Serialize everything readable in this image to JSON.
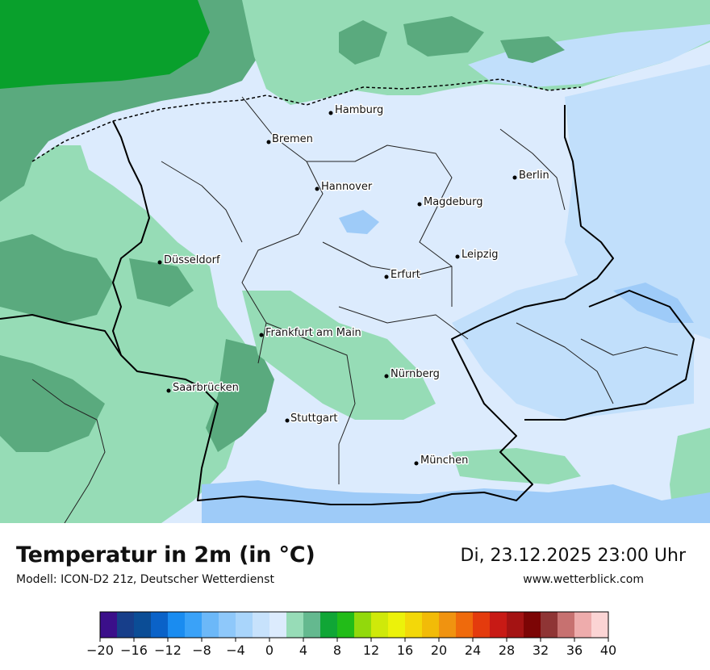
{
  "title": "Temperatur in 2m (in °C)",
  "model": "Modell: ICON-D2 21z, Deutscher Wetterdienst",
  "datetime": "Di, 23.12.2025 23:00 Uhr",
  "website": "www.wetterblick.com",
  "cities": [
    {
      "name": "Hamburg"
    },
    {
      "name": "Bremen"
    },
    {
      "name": "Berlin"
    },
    {
      "name": "Hannover"
    },
    {
      "name": "Magdeburg"
    },
    {
      "name": "Düsseldorf"
    },
    {
      "name": "Leipzig"
    },
    {
      "name": "Erfurt"
    },
    {
      "name": "Frankfurt am Main"
    },
    {
      "name": "Nürnberg"
    },
    {
      "name": "Saarbrücken"
    },
    {
      "name": "Stuttgart"
    },
    {
      "name": "München"
    }
  ],
  "legend": {
    "ticks": [
      "−20",
      "−16",
      "−12",
      "−8",
      "−4",
      "0",
      "4",
      "8",
      "12",
      "16",
      "20",
      "24",
      "28",
      "32",
      "36",
      "40"
    ],
    "colors": [
      "#3b0f8a",
      "#173e8a",
      "#0b4d96",
      "#0a62c8",
      "#1a8cf0",
      "#3aa2f8",
      "#6cb8f8",
      "#8ec8fa",
      "#a9d5fb",
      "#c7e2fc",
      "#dcebfd",
      "#97dcb7",
      "#64b98f",
      "#10a636",
      "#22bc18",
      "#92d90c",
      "#cfe90a",
      "#ecf20a",
      "#f3d809",
      "#f2bb08",
      "#f09310",
      "#ef6a0c",
      "#e43b0d",
      "#c81a15",
      "#a41313",
      "#7c0505",
      "#8f3535",
      "#c77170",
      "#eeacac",
      "#fbd4d4"
    ]
  },
  "colors": {
    "sea_dark": "#09a02c",
    "sea_mid": "#5aaa7e",
    "green_light": "#96dcb6",
    "land_pale": "#dcebfd",
    "land_blue": "#c1dffb",
    "cold_blue": "#9ecbf8"
  }
}
